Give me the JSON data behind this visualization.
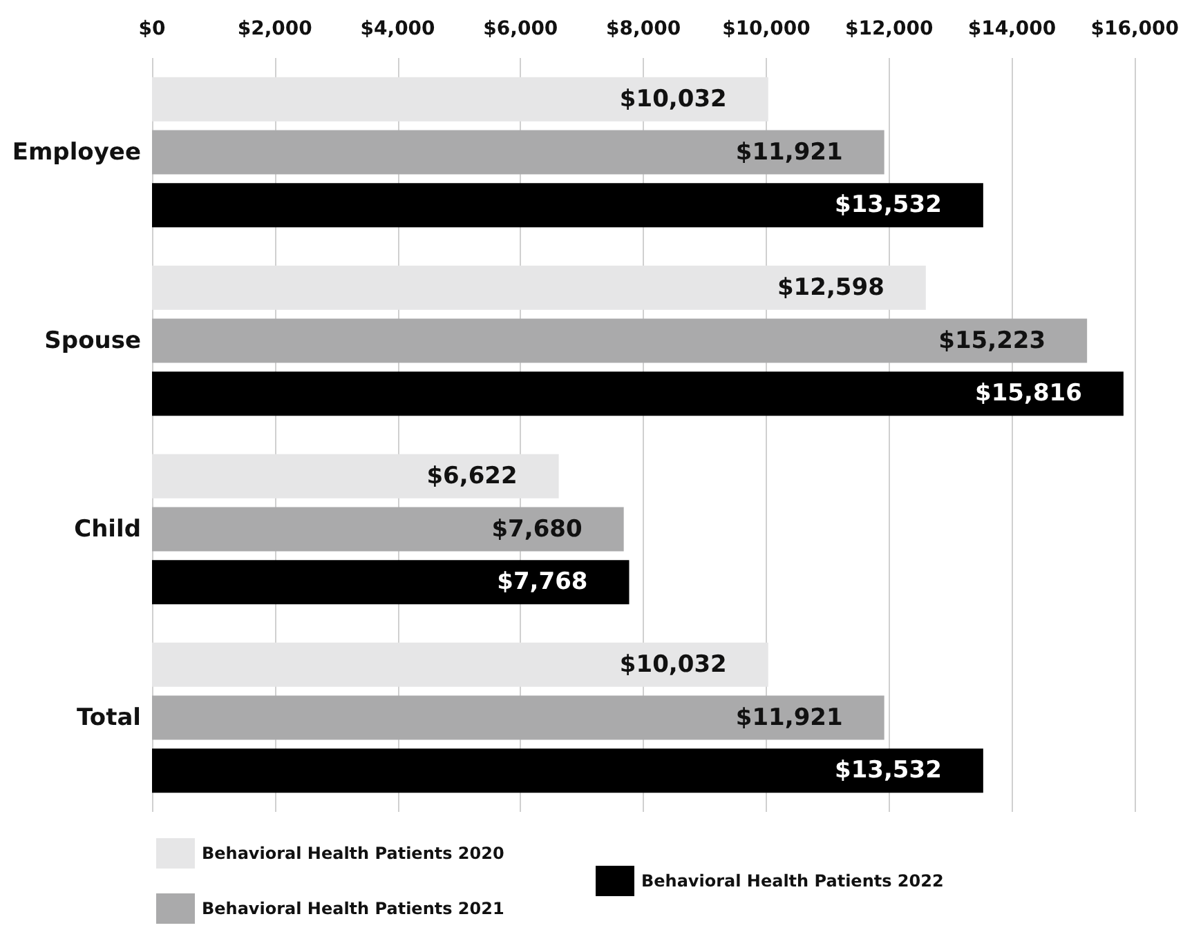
{
  "chart_data": {
    "type": "bar",
    "orientation": "horizontal",
    "categories": [
      "Employee",
      "Spouse",
      "Child",
      "Total"
    ],
    "series": [
      {
        "name": "Behavioral Health Patients 2020",
        "color": "#e6e6e7",
        "values": [
          10032,
          12598,
          6622,
          10032
        ],
        "value_labels": [
          "$10,032",
          "$12,598",
          "$6,622",
          "$10,032"
        ]
      },
      {
        "name": "Behavioral Health Patients 2021",
        "color": "#aaaaab",
        "values": [
          11921,
          15223,
          7680,
          11921
        ],
        "value_labels": [
          "$11,921",
          "$15,223",
          "$7,680",
          "$11,921"
        ]
      },
      {
        "name": "Behavioral Health Patients 2022",
        "color": "#000000",
        "values": [
          13532,
          15816,
          7768,
          13532
        ],
        "value_labels": [
          "$13,532",
          "$15,816",
          "$7,768",
          "$13,532"
        ]
      }
    ],
    "xlim": [
      0,
      16000
    ],
    "xticks": [
      {
        "value": 0,
        "label": "$0"
      },
      {
        "value": 2000,
        "label": "$2,000"
      },
      {
        "value": 4000,
        "label": "$4,000"
      },
      {
        "value": 6000,
        "label": "$6,000"
      },
      {
        "value": 8000,
        "label": "$8,000"
      },
      {
        "value": 10000,
        "label": "$10,000"
      },
      {
        "value": 12000,
        "label": "$12,000"
      },
      {
        "value": 14000,
        "label": "$14,000"
      },
      {
        "value": 16000,
        "label": "$16,000"
      }
    ],
    "grid": "x",
    "legend": "bottom"
  }
}
